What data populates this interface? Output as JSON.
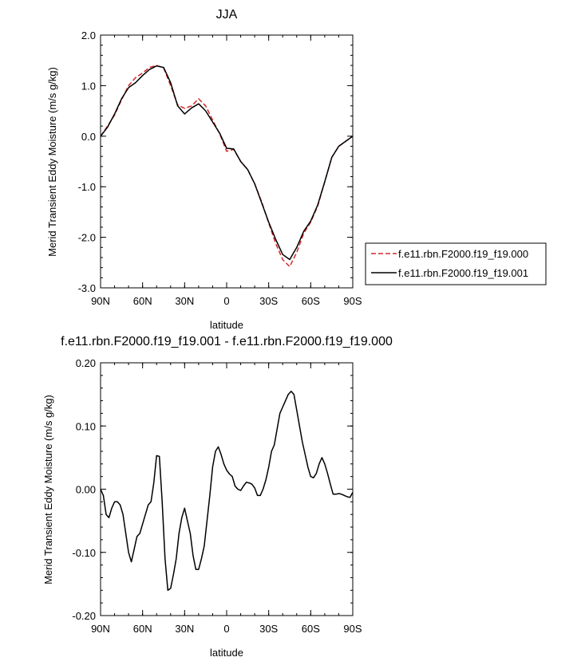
{
  "chart_data": [
    {
      "type": "line",
      "title": "JJA",
      "xlabel": "latitude",
      "ylabel": "Merid Transient Eddy Moisture (m/s g/kg)",
      "xlim": [
        90,
        -90
      ],
      "ylim": [
        -3.0,
        2.0
      ],
      "yticks": [
        2.0,
        1.0,
        0.0,
        -1.0,
        -2.0,
        -3.0
      ],
      "yticklabels": [
        "2.0",
        "1.0",
        "0.0",
        "-1.0",
        "-2.0",
        "-3.0"
      ],
      "xticks": [
        90,
        60,
        30,
        0,
        -30,
        -60,
        -90
      ],
      "xticklabels": [
        "90N",
        "60N",
        "30N",
        "0",
        "30S",
        "60S",
        "90S"
      ],
      "legend_position": "right",
      "series": [
        {
          "name": "f.e11.rbn.F2000.f19_f19.000",
          "color": "#d62728",
          "dash": "dashed",
          "x": [
            90,
            85,
            80,
            75,
            70,
            65,
            60,
            55,
            50,
            45,
            40,
            35,
            30,
            25,
            20,
            15,
            10,
            5,
            0,
            -5,
            -10,
            -15,
            -20,
            -25,
            -30,
            -35,
            -40,
            -45,
            -50,
            -55,
            -60,
            -65,
            -70,
            -75,
            -80,
            -85,
            -90
          ],
          "y": [
            0.0,
            0.2,
            0.42,
            0.72,
            1.0,
            1.16,
            1.25,
            1.36,
            1.4,
            1.35,
            1.0,
            0.62,
            0.55,
            0.6,
            0.74,
            0.6,
            0.32,
            0.05,
            -0.3,
            -0.26,
            -0.5,
            -0.66,
            -0.94,
            -1.3,
            -1.72,
            -2.12,
            -2.44,
            -2.58,
            -2.3,
            -1.92,
            -1.7,
            -1.38,
            -0.9,
            -0.42,
            -0.2,
            -0.1,
            0.0
          ]
        },
        {
          "name": "f.e11.rbn.F2000.f19_f19.001",
          "color": "#000000",
          "dash": "solid",
          "x": [
            90,
            85,
            80,
            75,
            70,
            65,
            60,
            55,
            50,
            45,
            40,
            35,
            30,
            25,
            20,
            15,
            10,
            5,
            0,
            -5,
            -10,
            -15,
            -20,
            -25,
            -30,
            -35,
            -40,
            -45,
            -50,
            -55,
            -60,
            -65,
            -70,
            -75,
            -80,
            -85,
            -90
          ],
          "y": [
            0.0,
            0.18,
            0.44,
            0.74,
            0.96,
            1.06,
            1.2,
            1.32,
            1.39,
            1.36,
            1.06,
            0.6,
            0.44,
            0.56,
            0.64,
            0.5,
            0.28,
            0.06,
            -0.24,
            -0.25,
            -0.5,
            -0.66,
            -0.94,
            -1.32,
            -1.7,
            -2.04,
            -2.34,
            -2.44,
            -2.2,
            -1.88,
            -1.68,
            -1.36,
            -0.9,
            -0.42,
            -0.2,
            -0.1,
            0.0
          ]
        }
      ]
    },
    {
      "type": "line",
      "title": "f.e11.rbn.F2000.f19_f19.001 - f.e11.rbn.F2000.f19_f19.000",
      "xlabel": "latitude",
      "ylabel": "Merid Transient Eddy Moisture (m/s g/kg)",
      "xlim": [
        90,
        -90
      ],
      "ylim": [
        -0.2,
        0.2
      ],
      "yticks": [
        0.2,
        0.1,
        0.0,
        -0.1,
        -0.2
      ],
      "yticklabels": [
        "0.20",
        "0.10",
        "0.00",
        "-0.10",
        "-0.20"
      ],
      "xticks": [
        90,
        60,
        30,
        0,
        -30,
        -60,
        -90
      ],
      "xticklabels": [
        "90N",
        "60N",
        "30N",
        "0",
        "30S",
        "60S",
        "90S"
      ],
      "series": [
        {
          "color": "#000000",
          "dash": "solid",
          "x": [
            90,
            88,
            86,
            84,
            82,
            80,
            78,
            76,
            74,
            72,
            70,
            68,
            66,
            64,
            62,
            60,
            58,
            56,
            54,
            52,
            50,
            48,
            46,
            44,
            42,
            40,
            38,
            36,
            34,
            32,
            30,
            28,
            26,
            24,
            22,
            20,
            18,
            16,
            14,
            12,
            10,
            8,
            6,
            4,
            2,
            0,
            -2,
            -4,
            -6,
            -8,
            -10,
            -12,
            -14,
            -16,
            -18,
            -20,
            -22,
            -24,
            -26,
            -28,
            -30,
            -32,
            -34,
            -36,
            -38,
            -40,
            -42,
            -44,
            -46,
            -48,
            -50,
            -52,
            -54,
            -56,
            -58,
            -60,
            -62,
            -64,
            -66,
            -68,
            -70,
            -72,
            -74,
            -76,
            -78,
            -80,
            -82,
            -84,
            -86,
            -88,
            -90
          ],
          "y": [
            0.0,
            -0.01,
            -0.04,
            -0.045,
            -0.03,
            -0.02,
            -0.02,
            -0.025,
            -0.04,
            -0.07,
            -0.1,
            -0.115,
            -0.095,
            -0.075,
            -0.07,
            -0.055,
            -0.04,
            -0.025,
            -0.02,
            0.01,
            0.053,
            0.052,
            -0.02,
            -0.11,
            -0.16,
            -0.157,
            -0.135,
            -0.11,
            -0.07,
            -0.045,
            -0.03,
            -0.05,
            -0.07,
            -0.105,
            -0.127,
            -0.127,
            -0.11,
            -0.09,
            -0.05,
            -0.01,
            0.035,
            0.06,
            0.067,
            0.055,
            0.04,
            0.03,
            0.024,
            0.02,
            0.005,
            0.0,
            -0.002,
            0.005,
            0.011,
            0.01,
            0.008,
            0.002,
            -0.01,
            -0.01,
            0.0,
            0.015,
            0.035,
            0.06,
            0.07,
            0.095,
            0.12,
            0.13,
            0.14,
            0.15,
            0.155,
            0.15,
            0.125,
            0.1,
            0.075,
            0.055,
            0.035,
            0.02,
            0.018,
            0.025,
            0.04,
            0.05,
            0.04,
            0.025,
            0.008,
            -0.008,
            -0.008,
            -0.007,
            -0.008,
            -0.01,
            -0.012,
            -0.013,
            -0.005
          ]
        }
      ]
    }
  ]
}
